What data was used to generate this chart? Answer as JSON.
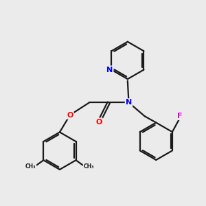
{
  "bg_color": "#ebebeb",
  "bond_color": "#1a1a1a",
  "nitrogen_color": "#0000ff",
  "oxygen_color": "#ff0000",
  "fluorine_color": "#dd00dd",
  "bond_width": 1.6,
  "fig_size": [
    3.0,
    3.0
  ],
  "dpi": 100,
  "xlim": [
    -0.5,
    8.5
  ],
  "ylim": [
    -0.5,
    8.5
  ]
}
